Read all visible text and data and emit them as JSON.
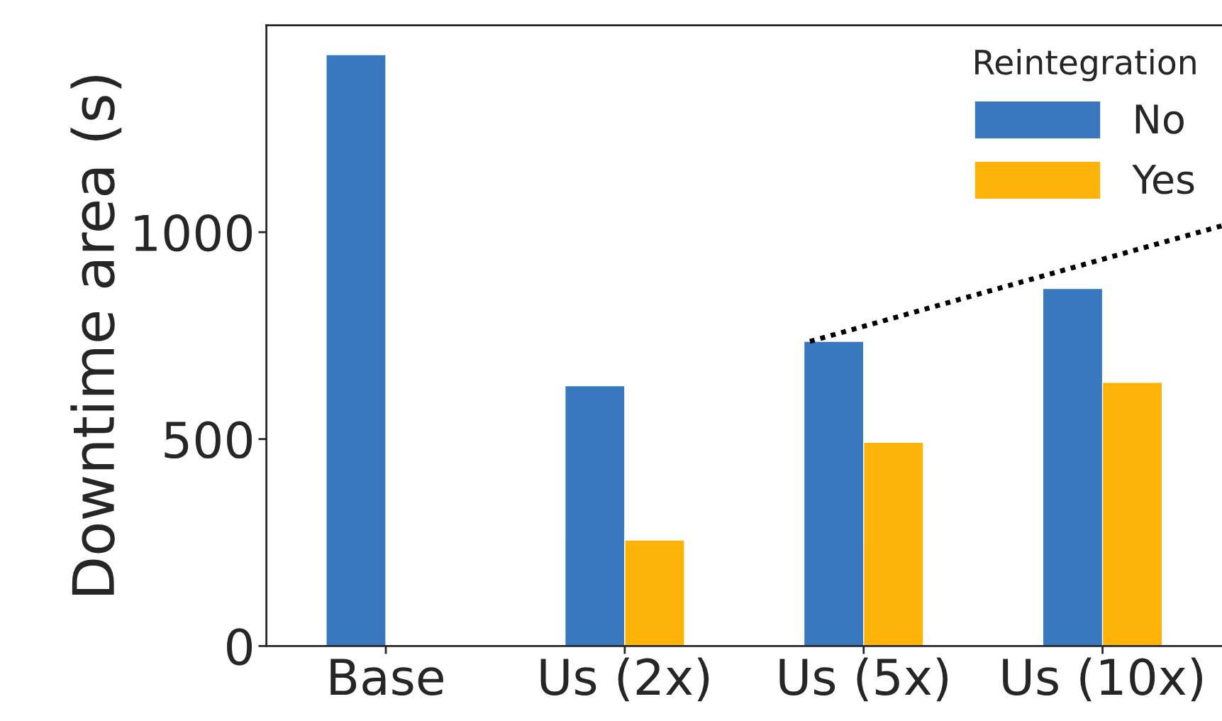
{
  "chart_data": {
    "type": "bar",
    "ylabel": "Downtime area (s)",
    "categories": [
      "Base",
      "Us (2x)",
      "Us (5x)",
      "Us (10x)"
    ],
    "series": [
      {
        "name": "No",
        "color": "#3778bf",
        "values": [
          1429,
          629,
          736,
          864
        ]
      },
      {
        "name": "Yes",
        "color": "#feb308",
        "values": [
          null,
          256,
          492,
          637
        ]
      }
    ],
    "legend_title": "Reintegration",
    "legend": "top right",
    "ylim": [
      0,
      1500
    ],
    "yticks": [
      0,
      500,
      1000
    ],
    "grid": false
  }
}
